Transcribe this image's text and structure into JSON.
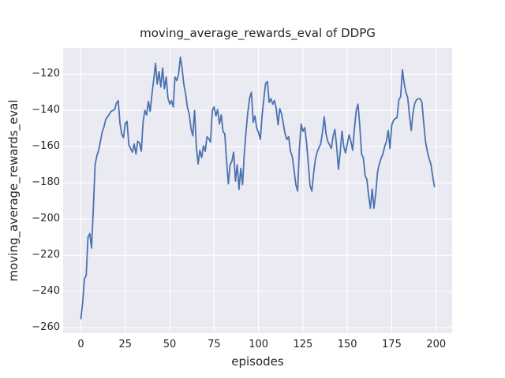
{
  "style": {
    "figure_bg": "#ffffff",
    "axes_bg": "#eaeaf2",
    "grid_color": "#ffffff",
    "text_color": "#262626",
    "line_color": "#4c72b0"
  },
  "chart_data": {
    "type": "line",
    "title": "moving_average_rewards_eval of DDPG",
    "xlabel": "episodes",
    "ylabel": "moving_average_rewards_eval",
    "x_description": "episode index, one data point per episode from 0 to 199",
    "x_ticks": [
      0,
      25,
      50,
      75,
      100,
      125,
      150,
      175,
      200
    ],
    "y_ticks": [
      -120,
      -140,
      -160,
      -180,
      -200,
      -220,
      -240,
      -260
    ],
    "xlim": [
      -10,
      209
    ],
    "ylim": [
      -263,
      -105.5
    ],
    "grid": true,
    "legend": null,
    "line_color": "#4c72b0",
    "values": [
      -255,
      -246,
      -233,
      -231,
      -210,
      -208,
      -216,
      -194,
      -170,
      -165,
      -162,
      -157,
      -152,
      -149,
      -145,
      -143.5,
      -142,
      -140.5,
      -140,
      -139.5,
      -136,
      -134.5,
      -147,
      -153,
      -155,
      -147,
      -146,
      -159,
      -161,
      -163,
      -158.5,
      -164,
      -157,
      -158,
      -162.5,
      -146.5,
      -140,
      -142.5,
      -135,
      -140.5,
      -131,
      -123,
      -114,
      -125.5,
      -118.5,
      -127,
      -116.5,
      -128,
      -121.5,
      -133,
      -136.5,
      -134.5,
      -138,
      -121.5,
      -123.5,
      -120,
      -110.5,
      -117,
      -126,
      -131,
      -138.5,
      -142,
      -150,
      -154,
      -140,
      -160,
      -169.5,
      -162,
      -166,
      -159.5,
      -162.5,
      -154.5,
      -155.5,
      -157.5,
      -140,
      -138,
      -143,
      -139.5,
      -147.5,
      -142.5,
      -151.5,
      -153,
      -167.5,
      -180.5,
      -170,
      -168,
      -163,
      -179,
      -170,
      -183.5,
      -172,
      -181,
      -164,
      -151,
      -141,
      -133,
      -130,
      -146.5,
      -143,
      -150,
      -152,
      -156,
      -143,
      -133.5,
      -125,
      -124,
      -135.5,
      -133.5,
      -136.5,
      -134.5,
      -139,
      -148,
      -139,
      -142,
      -147.5,
      -153,
      -156,
      -154.5,
      -162.5,
      -165.5,
      -172.5,
      -181,
      -184.5,
      -161,
      -147.5,
      -151.5,
      -149.5,
      -157.5,
      -169,
      -181.5,
      -184.5,
      -175,
      -167,
      -163,
      -160.5,
      -158.5,
      -152,
      -143.5,
      -153,
      -157,
      -159,
      -161,
      -154,
      -150.5,
      -160,
      -172.5,
      -163,
      -151.5,
      -160,
      -163.5,
      -158.5,
      -153.5,
      -157,
      -162,
      -150,
      -140,
      -136.5,
      -148,
      -164,
      -166,
      -176,
      -178,
      -187,
      -194,
      -183.5,
      -194,
      -186,
      -174,
      -169.5,
      -166.5,
      -164,
      -160,
      -157,
      -151,
      -161,
      -148,
      -145.5,
      -144.5,
      -144,
      -134,
      -132.5,
      -117.5,
      -125,
      -130,
      -133,
      -143,
      -151,
      -141,
      -136,
      -134,
      -133.5,
      -133.5,
      -135.5,
      -147,
      -157,
      -162.5,
      -166.5,
      -169.5,
      -176,
      -182
    ]
  }
}
